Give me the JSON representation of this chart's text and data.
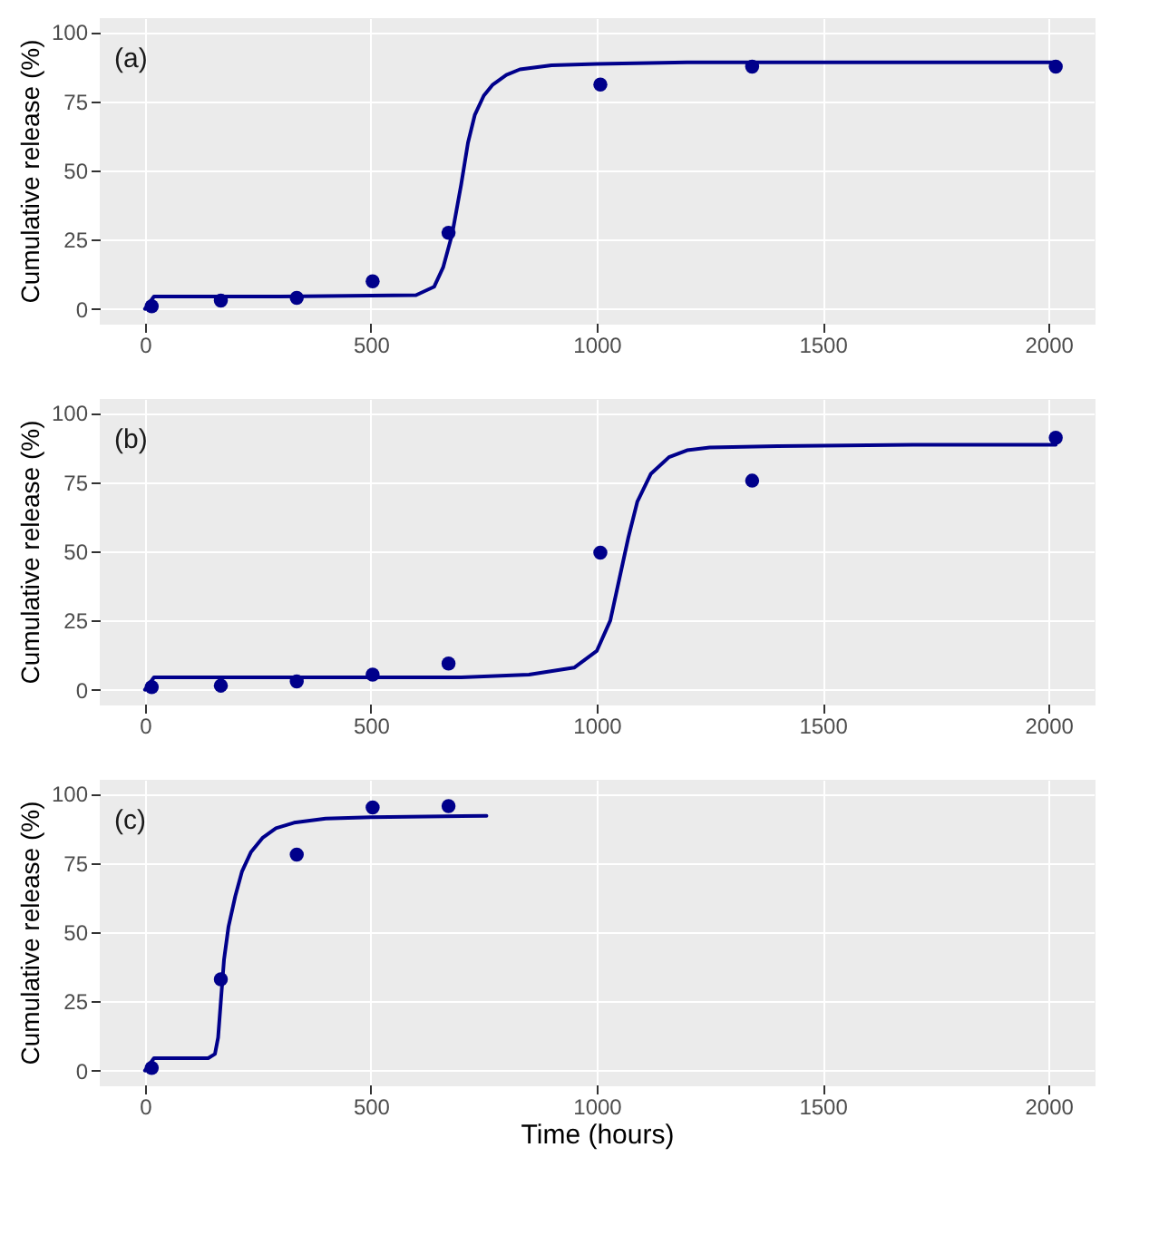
{
  "chart_data": [
    {
      "type": "scatter",
      "ylabel": "Cumulative release (%)",
      "annotations": [
        "(a)"
      ],
      "xlim": [
        -100,
        2100
      ],
      "ylim": [
        -5,
        105
      ],
      "xticks": [
        0,
        500,
        1000,
        1500,
        2000
      ],
      "yticks": [
        0,
        25,
        50,
        75,
        100
      ],
      "grid": true,
      "line_style": "solid",
      "series": [
        {
          "type": "scatter",
          "marker": "circle",
          "color": "#00008b",
          "x": [
            15,
            168,
            336,
            504,
            672,
            1008,
            1344,
            2016
          ],
          "values": [
            1,
            3,
            4,
            10,
            27.5,
            81,
            87.5,
            87.5
          ]
        },
        {
          "type": "line",
          "color": "#00008b",
          "x": [
            0,
            20,
            300,
            600,
            640,
            660,
            680,
            700,
            715,
            730,
            750,
            770,
            800,
            830,
            900,
            1000,
            1200,
            1500,
            2016
          ],
          "values": [
            0,
            4.5,
            4.5,
            5,
            8,
            15,
            27,
            45,
            60,
            70,
            77,
            81,
            84.5,
            86.5,
            88,
            88.5,
            89,
            89,
            89
          ]
        }
      ]
    },
    {
      "type": "scatter",
      "ylabel": "Cumulative release (%)",
      "annotations": [
        "(b)"
      ],
      "xlim": [
        -100,
        2100
      ],
      "ylim": [
        -5,
        105
      ],
      "xticks": [
        0,
        500,
        1000,
        1500,
        2000
      ],
      "yticks": [
        0,
        25,
        50,
        75,
        100
      ],
      "grid": true,
      "line_style": "solid",
      "series": [
        {
          "type": "scatter",
          "marker": "circle",
          "color": "#00008b",
          "x": [
            15,
            168,
            336,
            504,
            672,
            1008,
            1344,
            2016
          ],
          "values": [
            1,
            1.5,
            3,
            5.5,
            9.5,
            49.5,
            75.5,
            91
          ]
        },
        {
          "type": "line",
          "color": "#00008b",
          "x": [
            0,
            20,
            400,
            700,
            850,
            950,
            1000,
            1030,
            1050,
            1070,
            1090,
            1120,
            1160,
            1200,
            1250,
            1400,
            1700,
            2016
          ],
          "values": [
            0,
            4.5,
            4.5,
            4.5,
            5.5,
            8,
            14,
            25,
            40,
            55,
            68,
            78,
            84,
            86.5,
            87.5,
            88,
            88.5,
            88.5
          ]
        }
      ]
    },
    {
      "type": "scatter",
      "xlabel": "Time (hours)",
      "ylabel": "Cumulative release (%)",
      "annotations": [
        "(c)"
      ],
      "xlim": [
        -100,
        2100
      ],
      "ylim": [
        -5,
        105
      ],
      "xticks": [
        0,
        500,
        1000,
        1500,
        2000
      ],
      "yticks": [
        0,
        25,
        50,
        75,
        100
      ],
      "grid": true,
      "line_style": "solid",
      "series": [
        {
          "type": "scatter",
          "marker": "circle",
          "color": "#00008b",
          "x": [
            15,
            168,
            336,
            504,
            672
          ],
          "values": [
            1,
            33,
            78,
            95,
            95.5
          ]
        },
        {
          "type": "line",
          "color": "#00008b",
          "x": [
            0,
            20,
            100,
            140,
            155,
            162,
            168,
            175,
            185,
            200,
            215,
            235,
            260,
            290,
            330,
            400,
            500,
            756
          ],
          "values": [
            0,
            4.5,
            4.5,
            4.5,
            6,
            12,
            25,
            40,
            52,
            63,
            72,
            79,
            84,
            87.5,
            89.5,
            91,
            91.5,
            92
          ]
        }
      ]
    }
  ]
}
